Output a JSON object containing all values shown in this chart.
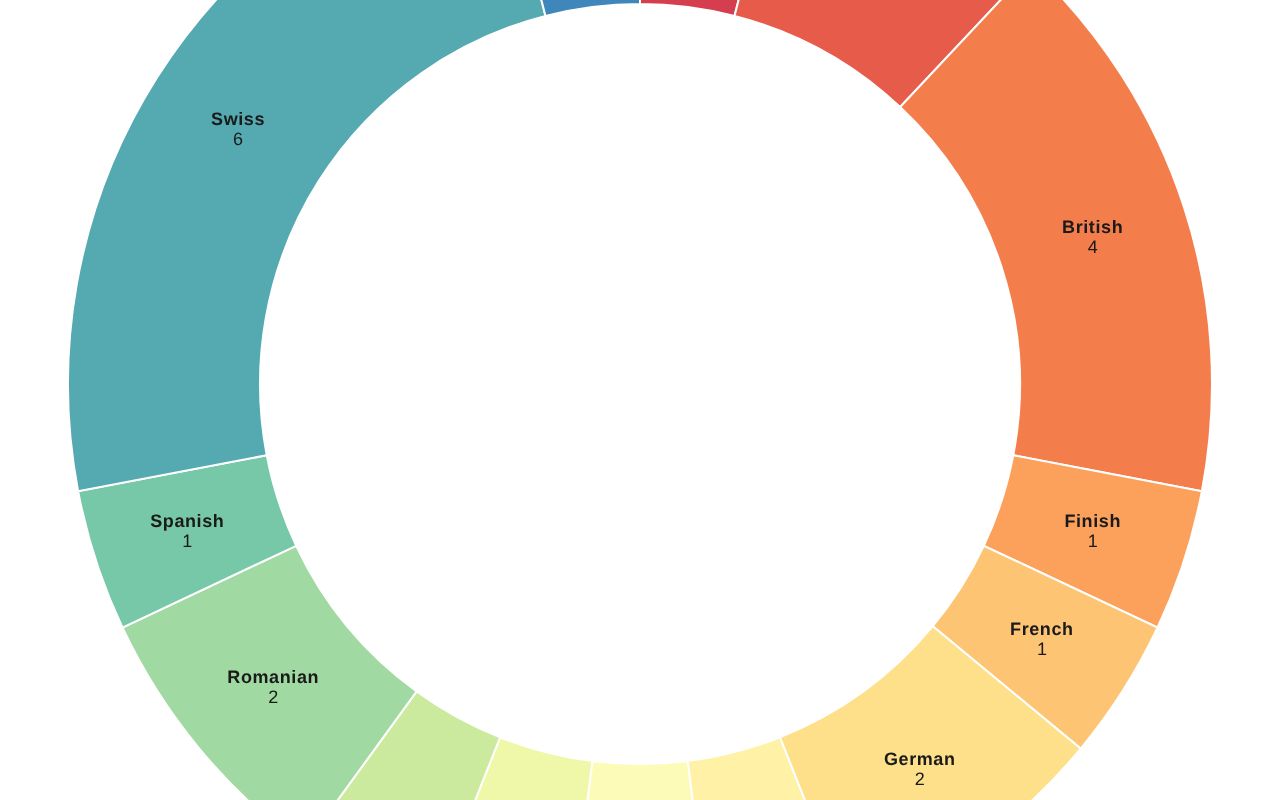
{
  "chart_data": {
    "type": "donut",
    "categories": [
      null,
      null,
      "British",
      "Finish",
      "French",
      "German",
      null,
      null,
      null,
      null,
      "Romanian",
      "Spanish",
      "Swiss",
      null
    ],
    "values": [
      1,
      2,
      4,
      1,
      1,
      2,
      1,
      1,
      1,
      1,
      2,
      1,
      6,
      1
    ],
    "colors": [
      "#d53e4f",
      "#e65b4a",
      "#f47e4b",
      "#fba15c",
      "#fdc474",
      "#fee08b",
      "#fff1a6",
      "#fdfbb8",
      "#eef8a8",
      "#cbea9d",
      "#a0d9a2",
      "#76c8a8",
      "#55a9b0",
      "#3f86bb"
    ],
    "value_labels": [
      null,
      null,
      "4",
      "1",
      "1",
      "2",
      null,
      null,
      null,
      null,
      "2",
      "1",
      "6",
      null
    ]
  }
}
